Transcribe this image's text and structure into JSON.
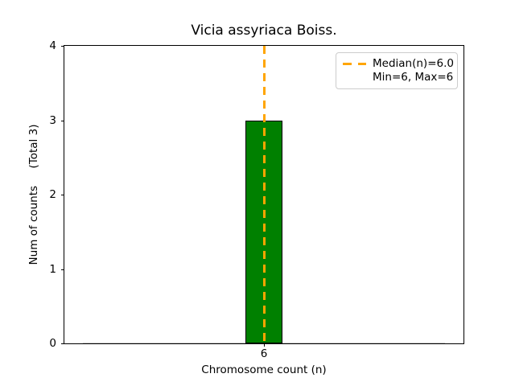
{
  "chart_data": {
    "type": "bar",
    "title": "Vicia assyriaca Boiss.",
    "xlabel": "Chromosome count (n)",
    "ylabel": "Num of counts     (Total 3)",
    "x": [
      6
    ],
    "values": [
      3
    ],
    "bar_width": 0.1,
    "bins_range": [
      5.5,
      6.5
    ],
    "xlim": [
      5.45,
      6.55
    ],
    "ylim": [
      0,
      4
    ],
    "yticks": [
      0,
      1,
      2,
      3,
      4
    ],
    "xticks": [
      6
    ],
    "total_counts": 3,
    "median": 6.0,
    "min": 6,
    "max": 6,
    "grid": false,
    "bar_color": "#008000",
    "bar_edge_color": "#000000",
    "median_line_color": "#FFA500",
    "legend": {
      "position": "upper right",
      "entries": [
        "Median(n)=6.0",
        "Min=6, Max=6"
      ]
    }
  },
  "colors": {
    "background": "#ffffff",
    "axis": "#000000",
    "legend_border": "#cccccc",
    "zero_bins_baseline": "#cccccc"
  }
}
